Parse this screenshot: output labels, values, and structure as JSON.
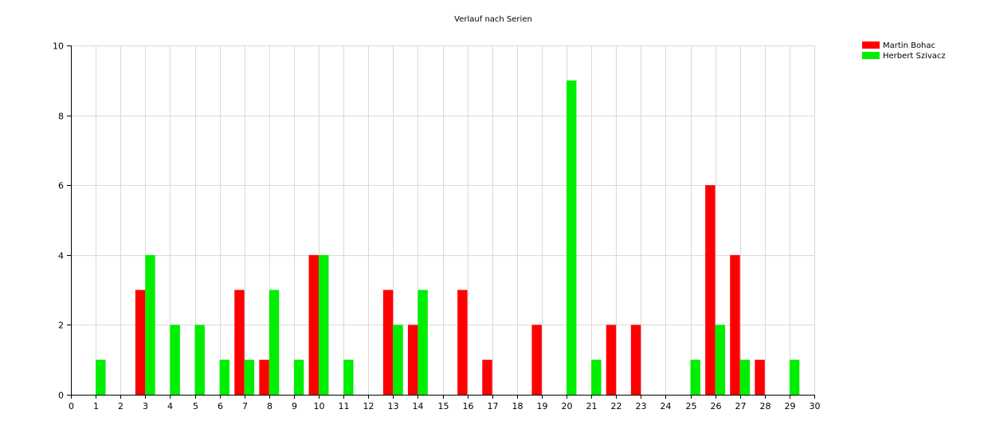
{
  "chart_data": {
    "type": "bar",
    "title": "Verlauf nach Serien",
    "xlabel": "",
    "ylabel": "",
    "xlim": [
      0,
      30
    ],
    "ylim": [
      0,
      10
    ],
    "x_ticks": [
      0,
      1,
      2,
      3,
      4,
      5,
      6,
      7,
      8,
      9,
      10,
      11,
      12,
      13,
      14,
      15,
      16,
      17,
      18,
      19,
      20,
      21,
      22,
      23,
      24,
      25,
      26,
      27,
      28,
      29,
      30
    ],
    "y_ticks": [
      0,
      2,
      4,
      6,
      8,
      10
    ],
    "grid": true,
    "legend_position": "top-right",
    "series": [
      {
        "name": "Martin Bohac",
        "color": "#ff0000",
        "offset": "left",
        "points": [
          {
            "x": 3,
            "y": 3
          },
          {
            "x": 7,
            "y": 3
          },
          {
            "x": 8,
            "y": 1
          },
          {
            "x": 10,
            "y": 4
          },
          {
            "x": 13,
            "y": 3
          },
          {
            "x": 14,
            "y": 2
          },
          {
            "x": 16,
            "y": 3
          },
          {
            "x": 17,
            "y": 1
          },
          {
            "x": 19,
            "y": 2
          },
          {
            "x": 22,
            "y": 2
          },
          {
            "x": 23,
            "y": 2
          },
          {
            "x": 26,
            "y": 6
          },
          {
            "x": 27,
            "y": 4
          },
          {
            "x": 28,
            "y": 1
          }
        ]
      },
      {
        "name": "Herbert Szivacz",
        "color": "#00ee00",
        "offset": "right",
        "points": [
          {
            "x": 1,
            "y": 1
          },
          {
            "x": 3,
            "y": 4
          },
          {
            "x": 4,
            "y": 2
          },
          {
            "x": 5,
            "y": 2
          },
          {
            "x": 6,
            "y": 1
          },
          {
            "x": 7,
            "y": 1
          },
          {
            "x": 8,
            "y": 3
          },
          {
            "x": 9,
            "y": 1
          },
          {
            "x": 10,
            "y": 4
          },
          {
            "x": 11,
            "y": 1
          },
          {
            "x": 13,
            "y": 2
          },
          {
            "x": 14,
            "y": 3
          },
          {
            "x": 20,
            "y": 9
          },
          {
            "x": 21,
            "y": 1
          },
          {
            "x": 25,
            "y": 1
          },
          {
            "x": 26,
            "y": 2
          },
          {
            "x": 27,
            "y": 1
          },
          {
            "x": 29,
            "y": 1
          }
        ]
      }
    ]
  }
}
